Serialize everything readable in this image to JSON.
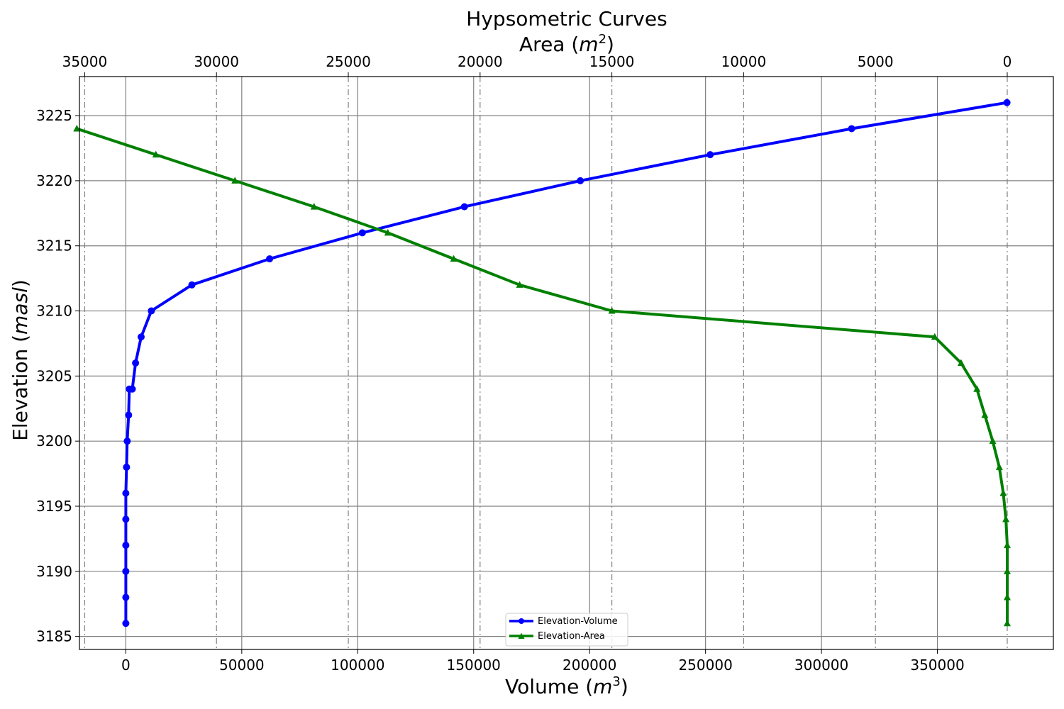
{
  "chart_data": {
    "type": "line",
    "title": "Hypsometric Curves",
    "xlabel": "Volume",
    "xlabel_unit": "m",
    "xlabel_unit_exp": "3",
    "x2label": "Area",
    "x2label_unit": "m",
    "x2label_unit_exp": "2",
    "ylabel": "Elevation",
    "ylabel_unit": "masl",
    "xlim": [
      -20000,
      400000
    ],
    "x2lim": [
      35200,
      -1750
    ],
    "ylim": [
      3184,
      3228
    ],
    "x_ticks": [
      0,
      50000,
      100000,
      150000,
      200000,
      250000,
      300000,
      350000
    ],
    "x2_ticks": [
      35000,
      30000,
      25000,
      20000,
      15000,
      10000,
      5000,
      0
    ],
    "y_ticks": [
      3185,
      3190,
      3195,
      3200,
      3205,
      3210,
      3215,
      3220,
      3225
    ],
    "grid": true,
    "legend_position": "lower center",
    "series": [
      {
        "name": "Elevation-Volume",
        "axis": "bottom",
        "color": "#0000ff",
        "marker": "circle",
        "x": [
          0,
          0,
          0,
          0,
          0,
          0,
          300,
          600,
          1200,
          1500,
          2800,
          4200,
          6600,
          11000,
          28500,
          62000,
          102000,
          146000,
          196000,
          252000,
          313000,
          380000
        ],
        "y": [
          3186,
          3188,
          3190,
          3192,
          3194,
          3196,
          3198,
          3200,
          3202,
          3204,
          3204,
          3206,
          3208,
          3210,
          3212,
          3214,
          3216,
          3218,
          3220,
          3222,
          3224,
          3226
        ]
      },
      {
        "name": "Elevation-Area",
        "axis": "top",
        "color": "#008000",
        "marker": "triangle",
        "x": [
          0,
          0,
          0,
          0,
          50,
          150,
          300,
          550,
          850,
          1150,
          1750,
          2750,
          15000,
          18500,
          21000,
          23500,
          26300,
          29300,
          32300,
          35300
        ],
        "y": [
          3186,
          3188,
          3190,
          3192,
          3194,
          3196,
          3198,
          3200,
          3202,
          3204,
          3206,
          3208,
          3210,
          3212,
          3214,
          3216,
          3218,
          3220,
          3222,
          3224
        ]
      }
    ]
  }
}
